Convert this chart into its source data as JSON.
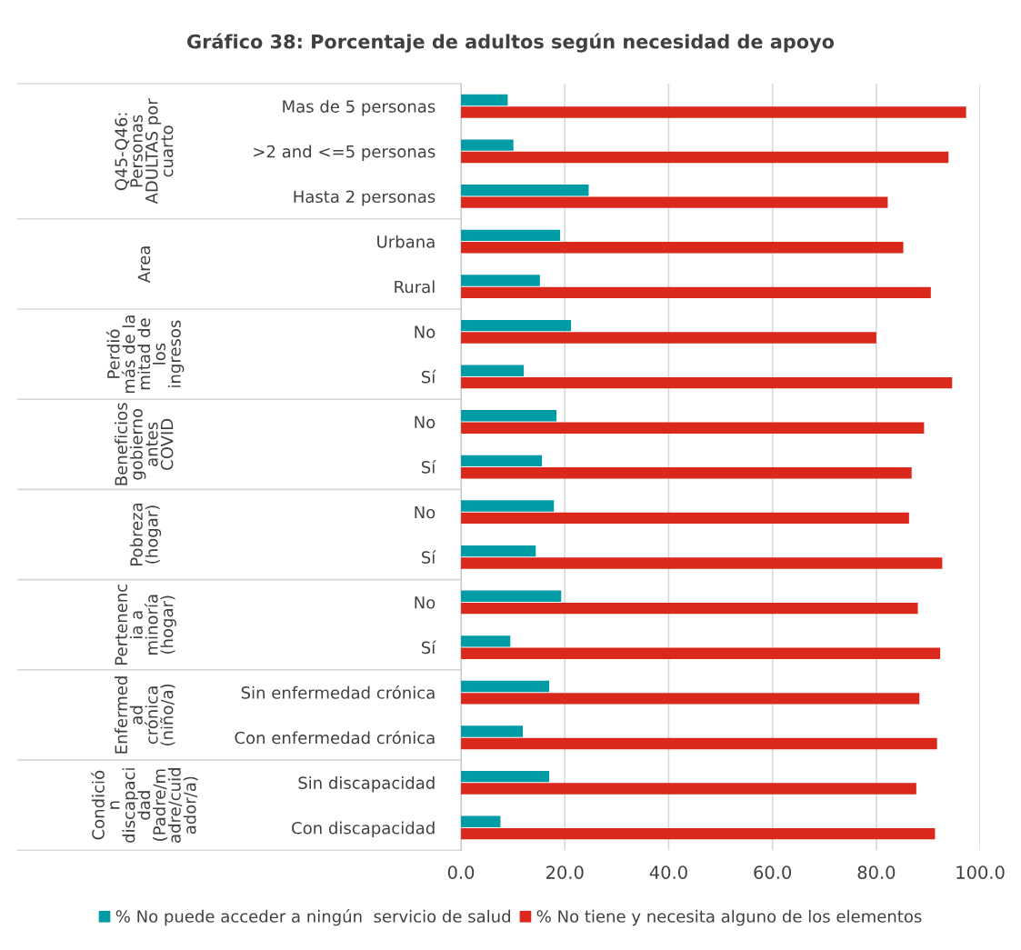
{
  "chart_data": {
    "type": "bar",
    "orientation": "horizontal",
    "title": "Gráfico 38: Porcentaje de adultos según necesidad de apoyo",
    "categories": [
      "Mas de 5 personas",
      ">2 and <=5 personas",
      "Hasta 2 personas",
      "Urbana",
      "Rural",
      "No",
      "Sí",
      "No",
      "Sí",
      "No",
      "Sí",
      "No",
      "Sí",
      "Sin enfermedad crónica",
      "Con enfermedad crónica",
      "Sin discapacidad",
      "Con discapacidad"
    ],
    "series": [
      {
        "name": "% No puede acceder a ningún  servicio de salud",
        "color": "#009ca6",
        "values": [
          9.0,
          10.1,
          24.6,
          19.1,
          15.2,
          21.2,
          12.1,
          18.4,
          15.6,
          17.9,
          14.4,
          19.3,
          9.5,
          17.0,
          11.9,
          17.0,
          7.6
        ]
      },
      {
        "name": "% No tiene y necesita alguno de los elementos",
        "color": "#da291c",
        "values": [
          97.3,
          93.9,
          82.2,
          85.2,
          90.5,
          80.0,
          94.6,
          89.2,
          86.8,
          86.3,
          92.7,
          88.0,
          92.3,
          88.3,
          91.7,
          87.7,
          91.3
        ]
      }
    ],
    "annotations": [
      "Q45-Q46:\nPersonas\nADULTAS por\ncuarto",
      "Area",
      "Perdió\nmás de la\nmitad de\nlos\ningresos",
      "Beneficios\ngobierno\nantes\nCOVID",
      "Pobreza\n(hogar)",
      "Pertenenc\nia a\nminoría\n(hogar)",
      "Enfermed\nad\ncrónica\n(niño/a)",
      "Condició\nn\ndiscapaci\ndad\n(Padre/m\nadre/cuid\nador/a)"
    ],
    "xlim": [
      0,
      100
    ],
    "xticks": [
      {
        "value": 0,
        "label": "0.0"
      },
      {
        "value": 20,
        "label": "20.0"
      },
      {
        "value": 40,
        "label": "40.0"
      },
      {
        "value": 60,
        "label": "60.0"
      },
      {
        "value": 80,
        "label": "80.0"
      },
      {
        "value": 100,
        "label": "100.0"
      }
    ],
    "grid": "x",
    "legend": "bottom"
  }
}
